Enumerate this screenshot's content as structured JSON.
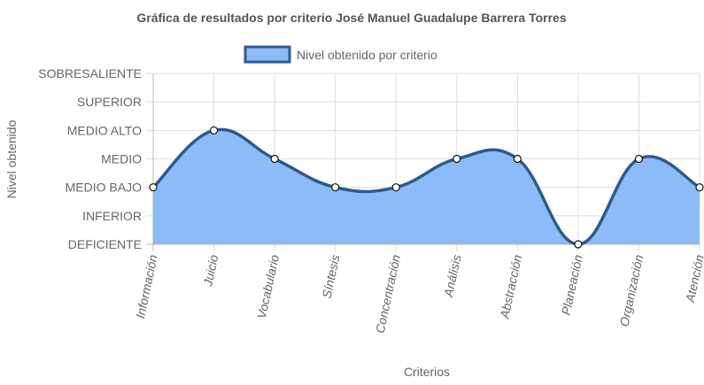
{
  "chart_data": {
    "type": "area",
    "title": "Gráfica de resultados por criterio José Manuel Guadalupe Barrera Torres",
    "xlabel": "Criterios",
    "ylabel": "Nivel obtenido",
    "categories": [
      "Información",
      "Juicio",
      "Vocabulario",
      "Síntesis",
      "Concentración",
      "Análisis",
      "Abstracción",
      "Planeación",
      "Organización",
      "Atención"
    ],
    "y_levels": [
      "DEFICIENTE",
      "INFERIOR",
      "MEDIO BAJO",
      "MEDIO",
      "MEDIO ALTO",
      "SUPERIOR",
      "SOBRESALIENTE"
    ],
    "ylim": [
      0,
      6
    ],
    "series": [
      {
        "name": "Nivel obtenido por criterio",
        "values": [
          2,
          4,
          3,
          2,
          2,
          3,
          3,
          0,
          3,
          2
        ]
      }
    ],
    "legend_position": "top",
    "grid": true,
    "colors": {
      "fill": "#8bbcf7",
      "stroke": "#2f5a8e",
      "grid": "#dddddd",
      "point_fill": "#ffffff"
    }
  }
}
